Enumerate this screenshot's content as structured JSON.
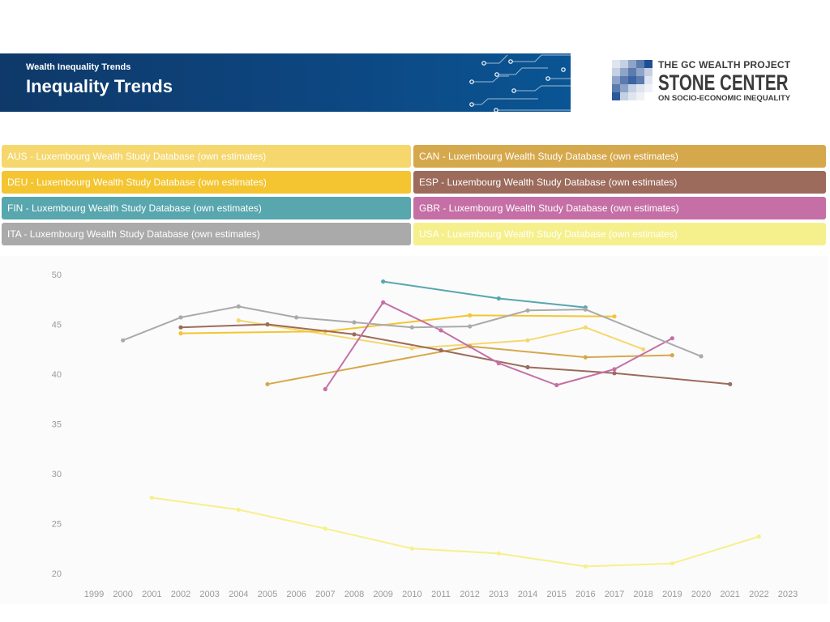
{
  "header": {
    "subtitle": "Wealth Inequality Trends",
    "title": "Inequality Trends"
  },
  "logo": {
    "line1": "THE GC WEALTH PROJECT",
    "line2": "STONE CENTER",
    "line3": "ON SOCIO-ECONOMIC INEQUALITY"
  },
  "chart_data": {
    "type": "line",
    "title": "",
    "xlabel": "",
    "ylabel": "",
    "xlim": [
      1999,
      2023
    ],
    "ylim": [
      20,
      50
    ],
    "x_ticks": [
      1999,
      2000,
      2001,
      2002,
      2003,
      2004,
      2005,
      2006,
      2007,
      2008,
      2009,
      2010,
      2011,
      2012,
      2013,
      2014,
      2015,
      2016,
      2017,
      2018,
      2019,
      2020,
      2021,
      2022,
      2023
    ],
    "y_ticks": [
      50,
      45,
      40,
      35,
      30,
      25,
      20
    ],
    "grid": false,
    "legend_position": "top",
    "series": [
      {
        "name": "AUS - Luxembourg Wealth Study Database (own estimates)",
        "color": "#f5d76e",
        "years": [
          2004,
          2010,
          2014,
          2016,
          2018
        ],
        "values": [
          45.4,
          42.6,
          43.4,
          44.7,
          42.5
        ]
      },
      {
        "name": "CAN - Luxembourg Wealth Study Database (own estimates)",
        "color": "#d6a84c",
        "years": [
          2005,
          2012,
          2016,
          2019
        ],
        "values": [
          39.0,
          42.8,
          41.7,
          41.9
        ]
      },
      {
        "name": "DEU - Luxembourg Wealth Study Database (own estimates)",
        "color": "#f4c531",
        "years": [
          2002,
          2007,
          2012,
          2017
        ],
        "values": [
          44.1,
          44.3,
          45.9,
          45.8
        ]
      },
      {
        "name": "ESP - Luxembourg Wealth Study Database (own estimates)",
        "color": "#9c6b5b",
        "years": [
          2002,
          2005,
          2008,
          2011,
          2014,
          2017,
          2021
        ],
        "values": [
          44.7,
          45.0,
          44.0,
          42.4,
          40.7,
          40.1,
          39.0
        ]
      },
      {
        "name": "FIN - Luxembourg Wealth Study Database (own estimates)",
        "color": "#58a6ae",
        "years": [
          2009,
          2013,
          2016
        ],
        "values": [
          49.3,
          47.6,
          46.7
        ]
      },
      {
        "name": "GBR - Luxembourg Wealth Study Database (own estimates)",
        "color": "#c56fa6",
        "years": [
          2007,
          2009,
          2011,
          2013,
          2015,
          2017,
          2019
        ],
        "values": [
          38.5,
          47.2,
          44.4,
          41.1,
          38.9,
          40.5,
          43.6
        ]
      },
      {
        "name": "ITA - Luxembourg Wealth Study Database (own estimates)",
        "color": "#aaaaaa",
        "years": [
          2000,
          2002,
          2004,
          2006,
          2008,
          2010,
          2012,
          2014,
          2016,
          2020
        ],
        "values": [
          43.4,
          45.7,
          46.8,
          45.7,
          45.2,
          44.7,
          44.8,
          46.4,
          46.5,
          41.8
        ]
      },
      {
        "name": "USA - Luxembourg Wealth Study Database (own estimates)",
        "color": "#f6f08c",
        "years": [
          2001,
          2004,
          2007,
          2010,
          2013,
          2016,
          2019,
          2022
        ],
        "values": [
          27.6,
          26.4,
          24.5,
          22.5,
          22.0,
          20.7,
          21.0,
          23.7
        ]
      }
    ]
  }
}
